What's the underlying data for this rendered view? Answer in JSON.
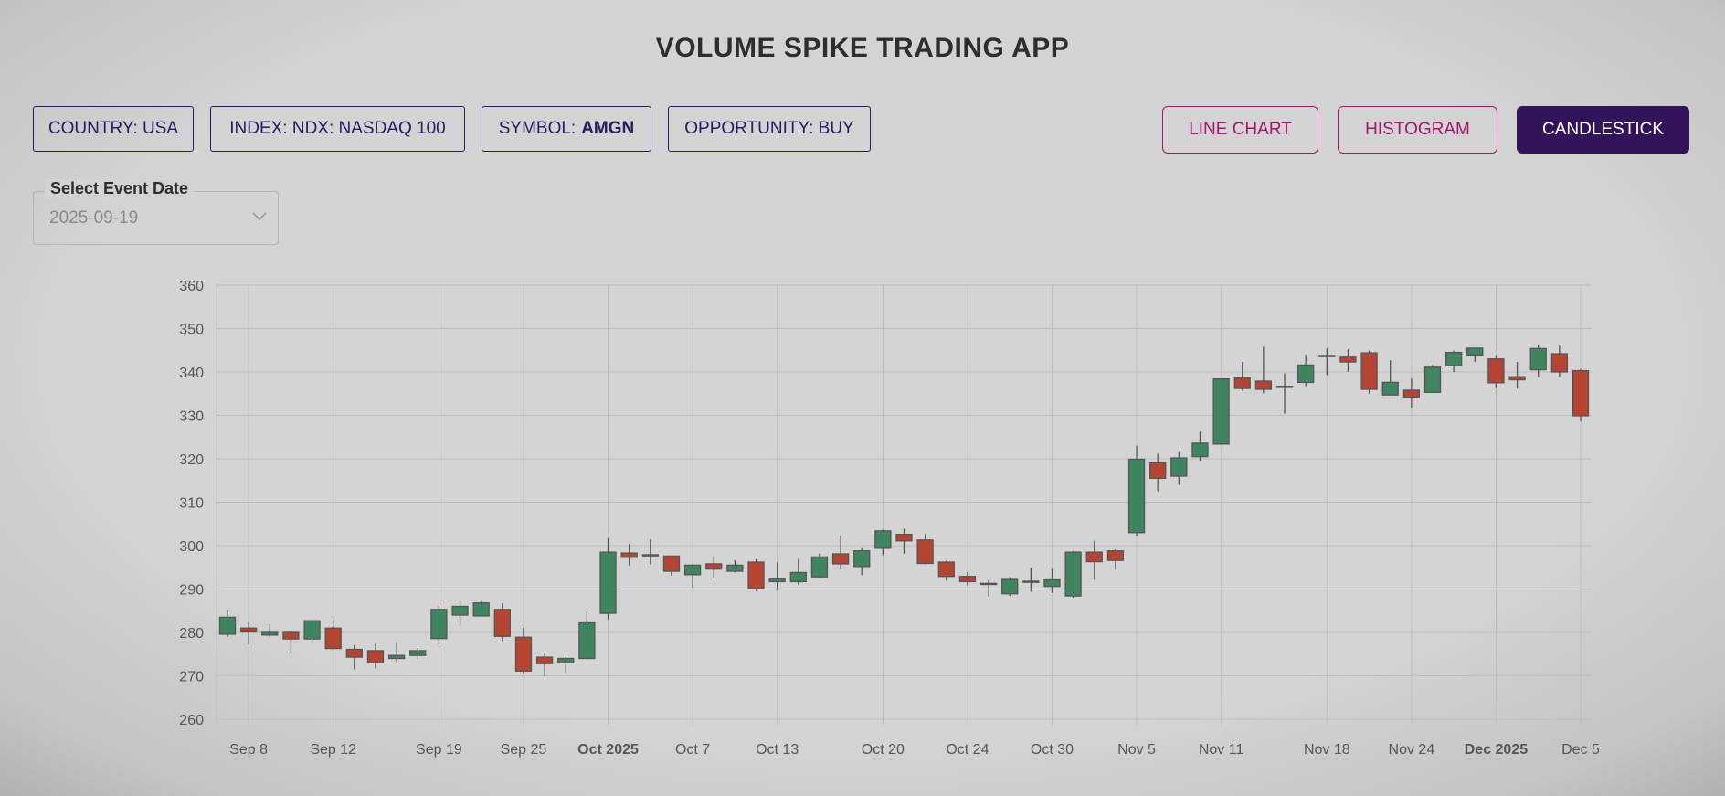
{
  "header": {
    "title": "VOLUME SPIKE TRADING APP"
  },
  "filters": {
    "country": "COUNTRY: USA",
    "index": "INDEX: NDX: NASDAQ 100",
    "symbol_label": "SYMBOL:",
    "symbol_value": "AMGN",
    "opportunity": "OPPORTUNITY: BUY"
  },
  "view_buttons": {
    "line": "LINE CHART",
    "histogram": "HISTOGRAM",
    "candlestick": "CANDLESTICK",
    "active": "candlestick"
  },
  "event_date": {
    "label": "Select Event Date",
    "value": "2025-09-19",
    "icon": "chevron-down-icon"
  },
  "colors": {
    "up": "#3e8560",
    "down": "#b64432",
    "accent": "#33145a",
    "pink": "#a0186e"
  },
  "chart_data": {
    "type": "candlestick",
    "ylim": [
      260,
      360
    ],
    "yticks": [
      260,
      270,
      280,
      290,
      300,
      310,
      320,
      330,
      340,
      350,
      360
    ],
    "grid": true,
    "xticks": [
      {
        "date": "2025-09-08",
        "label": "Sep 8"
      },
      {
        "date": "2025-09-12",
        "label": "Sep 12"
      },
      {
        "date": "2025-09-19",
        "label": "Sep 19"
      },
      {
        "date": "2025-09-25",
        "label": "Sep 25"
      },
      {
        "date": "2025-10-01",
        "label": "Oct 2025",
        "bold": true
      },
      {
        "date": "2025-10-07",
        "label": "Oct 7"
      },
      {
        "date": "2025-10-13",
        "label": "Oct 13"
      },
      {
        "date": "2025-10-20",
        "label": "Oct 20"
      },
      {
        "date": "2025-10-24",
        "label": "Oct 24"
      },
      {
        "date": "2025-10-30",
        "label": "Oct 30"
      },
      {
        "date": "2025-11-05",
        "label": "Nov 5"
      },
      {
        "date": "2025-11-11",
        "label": "Nov 11"
      },
      {
        "date": "2025-11-18",
        "label": "Nov 18"
      },
      {
        "date": "2025-11-24",
        "label": "Nov 24"
      },
      {
        "date": "2025-12-01",
        "label": "Dec 2025",
        "bold": true
      },
      {
        "date": "2025-12-05",
        "label": "Dec 5"
      }
    ],
    "candles": [
      {
        "date": "2025-09-05",
        "o": 279.6,
        "h": 285.1,
        "l": 279.0,
        "c": 283.5
      },
      {
        "date": "2025-09-08",
        "o": 281.0,
        "h": 282.3,
        "l": 277.3,
        "c": 280.1
      },
      {
        "date": "2025-09-09",
        "o": 279.4,
        "h": 282.0,
        "l": 278.8,
        "c": 280.0
      },
      {
        "date": "2025-09-10",
        "o": 280.0,
        "h": 280.2,
        "l": 275.1,
        "c": 278.5
      },
      {
        "date": "2025-09-11",
        "o": 278.5,
        "h": 282.8,
        "l": 278.0,
        "c": 282.7
      },
      {
        "date": "2025-09-12",
        "o": 281.0,
        "h": 283.0,
        "l": 276.2,
        "c": 276.3
      },
      {
        "date": "2025-09-15",
        "o": 276.1,
        "h": 277.1,
        "l": 271.5,
        "c": 274.3
      },
      {
        "date": "2025-09-16",
        "o": 275.8,
        "h": 277.4,
        "l": 271.7,
        "c": 273.0
      },
      {
        "date": "2025-09-17",
        "o": 274.0,
        "h": 277.6,
        "l": 272.9,
        "c": 274.7
      },
      {
        "date": "2025-09-18",
        "o": 274.7,
        "h": 276.4,
        "l": 274.0,
        "c": 275.8
      },
      {
        "date": "2025-09-19",
        "o": 278.6,
        "h": 286.1,
        "l": 277.3,
        "c": 285.3
      },
      {
        "date": "2025-09-22",
        "o": 284.0,
        "h": 287.2,
        "l": 281.6,
        "c": 286.0
      },
      {
        "date": "2025-09-23",
        "o": 283.8,
        "h": 287.2,
        "l": 283.8,
        "c": 286.8
      },
      {
        "date": "2025-09-24",
        "o": 285.3,
        "h": 286.7,
        "l": 278.0,
        "c": 279.1
      },
      {
        "date": "2025-09-25",
        "o": 278.9,
        "h": 281.1,
        "l": 270.5,
        "c": 271.1
      },
      {
        "date": "2025-09-26",
        "o": 274.3,
        "h": 275.4,
        "l": 269.8,
        "c": 272.8
      },
      {
        "date": "2025-09-29",
        "o": 273.0,
        "h": 274.3,
        "l": 270.7,
        "c": 274.0
      },
      {
        "date": "2025-09-30",
        "o": 274.0,
        "h": 284.8,
        "l": 274.0,
        "c": 282.2
      },
      {
        "date": "2025-10-01",
        "o": 284.4,
        "h": 301.7,
        "l": 283.0,
        "c": 298.5
      },
      {
        "date": "2025-10-02",
        "o": 298.3,
        "h": 300.4,
        "l": 295.4,
        "c": 297.3
      },
      {
        "date": "2025-10-03",
        "o": 297.9,
        "h": 301.5,
        "l": 295.7,
        "c": 297.9
      },
      {
        "date": "2025-10-06",
        "o": 297.6,
        "h": 297.6,
        "l": 293.1,
        "c": 294.1
      },
      {
        "date": "2025-10-07",
        "o": 293.3,
        "h": 295.7,
        "l": 290.3,
        "c": 295.5
      },
      {
        "date": "2025-10-08",
        "o": 295.8,
        "h": 297.6,
        "l": 292.4,
        "c": 294.6
      },
      {
        "date": "2025-10-09",
        "o": 294.1,
        "h": 296.6,
        "l": 293.8,
        "c": 295.5
      },
      {
        "date": "2025-10-10",
        "o": 296.2,
        "h": 296.9,
        "l": 289.6,
        "c": 290.1
      },
      {
        "date": "2025-10-13",
        "o": 291.7,
        "h": 296.1,
        "l": 289.6,
        "c": 292.4
      },
      {
        "date": "2025-10-14",
        "o": 291.7,
        "h": 296.9,
        "l": 291.0,
        "c": 293.8
      },
      {
        "date": "2025-10-15",
        "o": 292.8,
        "h": 298.2,
        "l": 292.4,
        "c": 297.4
      },
      {
        "date": "2025-10-16",
        "o": 298.1,
        "h": 302.3,
        "l": 294.5,
        "c": 295.8
      },
      {
        "date": "2025-10-17",
        "o": 295.2,
        "h": 299.4,
        "l": 293.2,
        "c": 298.8
      },
      {
        "date": "2025-10-20",
        "o": 299.4,
        "h": 303.7,
        "l": 297.8,
        "c": 303.4
      },
      {
        "date": "2025-10-21",
        "o": 302.6,
        "h": 303.9,
        "l": 298.1,
        "c": 301.1
      },
      {
        "date": "2025-10-22",
        "o": 301.3,
        "h": 302.7,
        "l": 295.7,
        "c": 295.9
      },
      {
        "date": "2025-10-23",
        "o": 296.2,
        "h": 296.6,
        "l": 292.0,
        "c": 292.9
      },
      {
        "date": "2025-10-24",
        "o": 292.9,
        "h": 293.9,
        "l": 290.8,
        "c": 291.7
      },
      {
        "date": "2025-10-27",
        "o": 291.3,
        "h": 292.0,
        "l": 288.3,
        "c": 291.3
      },
      {
        "date": "2025-10-28",
        "o": 288.9,
        "h": 292.7,
        "l": 288.4,
        "c": 292.2
      },
      {
        "date": "2025-10-29",
        "o": 291.8,
        "h": 294.9,
        "l": 289.4,
        "c": 291.8
      },
      {
        "date": "2025-10-30",
        "o": 290.6,
        "h": 294.6,
        "l": 289.1,
        "c": 292.1
      },
      {
        "date": "2025-10-31",
        "o": 288.4,
        "h": 298.8,
        "l": 288.0,
        "c": 298.5
      },
      {
        "date": "2025-11-03",
        "o": 298.5,
        "h": 301.1,
        "l": 292.2,
        "c": 296.3
      },
      {
        "date": "2025-11-04",
        "o": 298.8,
        "h": 299.2,
        "l": 294.5,
        "c": 296.6
      },
      {
        "date": "2025-11-05",
        "o": 303.0,
        "h": 323.0,
        "l": 302.2,
        "c": 319.9
      },
      {
        "date": "2025-11-06",
        "o": 319.1,
        "h": 321.2,
        "l": 312.5,
        "c": 315.5
      },
      {
        "date": "2025-11-07",
        "o": 316.0,
        "h": 321.5,
        "l": 314.0,
        "c": 320.2
      },
      {
        "date": "2025-11-10",
        "o": 320.5,
        "h": 326.2,
        "l": 319.6,
        "c": 323.6
      },
      {
        "date": "2025-11-11",
        "o": 323.4,
        "h": 338.4,
        "l": 323.4,
        "c": 338.4
      },
      {
        "date": "2025-11-12",
        "o": 338.6,
        "h": 342.3,
        "l": 335.7,
        "c": 336.2
      },
      {
        "date": "2025-11-13",
        "o": 337.9,
        "h": 345.8,
        "l": 335.1,
        "c": 336.0
      },
      {
        "date": "2025-11-14",
        "o": 336.7,
        "h": 339.7,
        "l": 330.4,
        "c": 336.7
      },
      {
        "date": "2025-11-17",
        "o": 337.6,
        "h": 344.0,
        "l": 336.7,
        "c": 341.6
      },
      {
        "date": "2025-11-18",
        "o": 343.7,
        "h": 345.4,
        "l": 339.3,
        "c": 343.8
      },
      {
        "date": "2025-11-19",
        "o": 343.4,
        "h": 345.2,
        "l": 340.0,
        "c": 342.3
      },
      {
        "date": "2025-11-20",
        "o": 344.4,
        "h": 344.9,
        "l": 335.0,
        "c": 336.0
      },
      {
        "date": "2025-11-21",
        "o": 334.7,
        "h": 342.7,
        "l": 334.7,
        "c": 337.6
      },
      {
        "date": "2025-11-24",
        "o": 335.8,
        "h": 338.5,
        "l": 331.8,
        "c": 334.2
      },
      {
        "date": "2025-11-25",
        "o": 335.3,
        "h": 341.6,
        "l": 335.3,
        "c": 341.1
      },
      {
        "date": "2025-11-26",
        "o": 341.4,
        "h": 344.9,
        "l": 340.0,
        "c": 344.5
      },
      {
        "date": "2025-11-28",
        "o": 343.9,
        "h": 345.5,
        "l": 342.3,
        "c": 345.5
      },
      {
        "date": "2025-12-01",
        "o": 343.0,
        "h": 343.9,
        "l": 336.2,
        "c": 337.5
      },
      {
        "date": "2025-12-02",
        "o": 338.9,
        "h": 342.3,
        "l": 336.2,
        "c": 338.2
      },
      {
        "date": "2025-12-03",
        "o": 340.5,
        "h": 346.3,
        "l": 338.8,
        "c": 345.4
      },
      {
        "date": "2025-12-04",
        "o": 344.2,
        "h": 346.2,
        "l": 338.8,
        "c": 340.0
      },
      {
        "date": "2025-12-05",
        "o": 340.3,
        "h": 340.7,
        "l": 328.6,
        "c": 329.9
      }
    ]
  }
}
